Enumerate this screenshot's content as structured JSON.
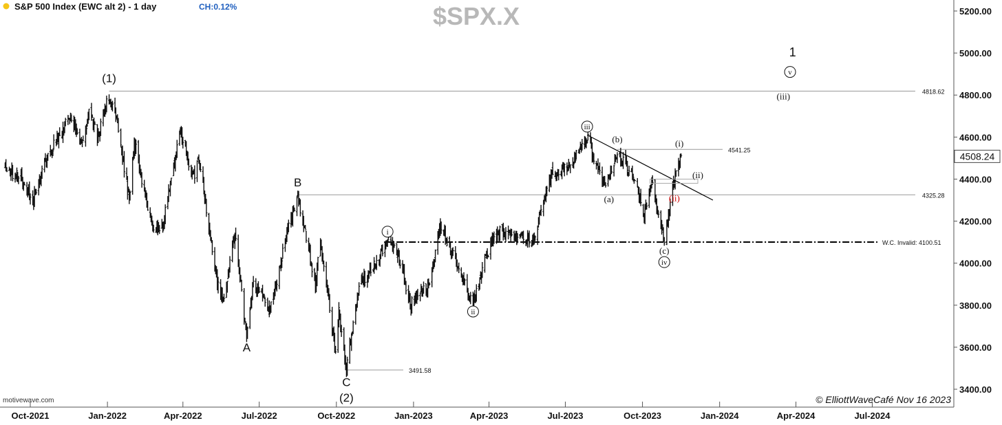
{
  "header": {
    "title": "S&P 500 Index (EWC alt 2) - 1 day",
    "change": "CH:0.12%",
    "symbol": "$SPX.X",
    "status_dot_color": "#f5c518"
  },
  "footer": {
    "source": "motivewave.com",
    "copyright": "© ElliottWaveCafé Nov 16 2023"
  },
  "chart_data": {
    "type": "ohlc",
    "interval": "1 day",
    "ylim": [
      3400,
      5250
    ],
    "yticks": [
      "3400.00",
      "3600.00",
      "3800.00",
      "4000.00",
      "4200.00",
      "4400.00",
      "4600.00",
      "4800.00",
      "5000.00",
      "5200.00"
    ],
    "xticks": [
      "Oct-2021",
      "Jan-2022",
      "Apr-2022",
      "Jul-2022",
      "Oct-2022",
      "Jan-2023",
      "Apr-2023",
      "Jul-2023",
      "Oct-2023",
      "Jan-2024",
      "Apr-2024",
      "Jul-2024"
    ],
    "last_price": "4508.24",
    "price_path": [
      [
        "2021-09-01",
        4450
      ],
      [
        "2021-09-20",
        4400
      ],
      [
        "2021-10-04",
        4300
      ],
      [
        "2021-10-20",
        4500
      ],
      [
        "2021-11-18",
        4700
      ],
      [
        "2021-12-01",
        4550
      ],
      [
        "2021-12-10",
        4720
      ],
      [
        "2021-12-20",
        4600
      ],
      [
        "2022-01-03",
        4800
      ],
      [
        "2022-01-14",
        4650
      ],
      [
        "2022-01-27",
        4300
      ],
      [
        "2022-02-02",
        4580
      ],
      [
        "2022-02-24",
        4150
      ],
      [
        "2022-03-08",
        4180
      ],
      [
        "2022-03-29",
        4630
      ],
      [
        "2022-04-14",
        4400
      ],
      [
        "2022-04-20",
        4500
      ],
      [
        "2022-05-12",
        3900
      ],
      [
        "2022-05-20",
        3820
      ],
      [
        "2022-06-02",
        4150
      ],
      [
        "2022-06-16",
        3650
      ],
      [
        "2022-06-24",
        3900
      ],
      [
        "2022-07-14",
        3780
      ],
      [
        "2022-08-01",
        4110
      ],
      [
        "2022-08-16",
        4320
      ],
      [
        "2022-09-06",
        3900
      ],
      [
        "2022-09-12",
        4100
      ],
      [
        "2022-09-30",
        3580
      ],
      [
        "2022-10-04",
        3780
      ],
      [
        "2022-10-13",
        3491.58
      ],
      [
        "2022-10-28",
        3900
      ],
      [
        "2022-11-10",
        3960
      ],
      [
        "2022-12-01",
        4100
      ],
      [
        "2022-12-13",
        4050
      ],
      [
        "2022-12-28",
        3800
      ],
      [
        "2023-01-19",
        3900
      ],
      [
        "2023-02-02",
        4190
      ],
      [
        "2023-02-24",
        3970
      ],
      [
        "2023-03-13",
        3810
      ],
      [
        "2023-03-30",
        4050
      ],
      [
        "2023-04-14",
        4150
      ],
      [
        "2023-05-01",
        4120
      ],
      [
        "2023-05-24",
        4110
      ],
      [
        "2023-06-15",
        4420
      ],
      [
        "2023-07-03",
        4450
      ],
      [
        "2023-07-27",
        4600
      ],
      [
        "2023-08-18",
        4350
      ],
      [
        "2023-09-01",
        4520
      ],
      [
        "2023-09-20",
        4420
      ],
      [
        "2023-10-03",
        4230
      ],
      [
        "2023-10-12",
        4380
      ],
      [
        "2023-10-27",
        4110
      ],
      [
        "2023-11-07",
        4380
      ],
      [
        "2023-11-16",
        4508.24
      ]
    ],
    "price_levels": [
      {
        "value": 4818.62,
        "label": "4818.62"
      },
      {
        "value": 4541.25,
        "label": "4541.25"
      },
      {
        "value": 4325.28,
        "label": "4325.28"
      },
      {
        "value": 3491.58,
        "label": "3491.58"
      },
      {
        "value": 4100.51,
        "label": "W.C. Invalid: 4100.51",
        "style": "dash-dot"
      }
    ],
    "wave_labels": [
      {
        "text": "(1)",
        "date": "2022-01-03",
        "price": 4880,
        "style": "plain"
      },
      {
        "text": "A",
        "date": "2022-06-16",
        "price": 3600,
        "style": "plain"
      },
      {
        "text": "B",
        "date": "2022-08-16",
        "price": 4385,
        "style": "plain"
      },
      {
        "text": "C",
        "date": "2022-10-13",
        "price": 3435,
        "style": "plain"
      },
      {
        "text": "(2)",
        "date": "2022-10-13",
        "price": 3360,
        "style": "plain"
      },
      {
        "text": "i",
        "date": "2022-12-01",
        "price": 4150,
        "style": "circled"
      },
      {
        "text": "ii",
        "date": "2023-03-13",
        "price": 3770,
        "style": "circled"
      },
      {
        "text": "iii",
        "date": "2023-07-27",
        "price": 4650,
        "style": "circled"
      },
      {
        "text": "(b)",
        "date": "2023-09-01",
        "price": 4590,
        "style": "serif"
      },
      {
        "text": "(a)",
        "date": "2023-08-22",
        "price": 4305,
        "style": "serif"
      },
      {
        "text": "(c)",
        "date": "2023-10-27",
        "price": 4060,
        "style": "serif"
      },
      {
        "text": "iv",
        "date": "2023-10-27",
        "price": 4005,
        "style": "circled"
      },
      {
        "text": "(ii)",
        "date": "2023-11-08",
        "price": 4310,
        "style": "serif-red"
      },
      {
        "text": "(i)",
        "date": "2023-11-14",
        "price": 4570,
        "style": "serif"
      },
      {
        "text": "(ii)",
        "date": "2023-12-06",
        "price": 4420,
        "style": "serif"
      },
      {
        "text": "(iii)",
        "date": "2024-03-17",
        "price": 4795,
        "style": "serif"
      },
      {
        "text": "v",
        "date": "2024-03-25",
        "price": 4910,
        "style": "circled"
      },
      {
        "text": "1",
        "date": "2024-03-28",
        "price": 5005,
        "style": "plain-large"
      }
    ],
    "trendline": {
      "from": [
        "2023-07-27",
        4610
      ],
      "to": [
        "2023-12-24",
        4300
      ]
    },
    "colors": {
      "bars": "#111111",
      "levels": "#999999",
      "red_label": "#cc0000",
      "text": "#111111"
    }
  }
}
